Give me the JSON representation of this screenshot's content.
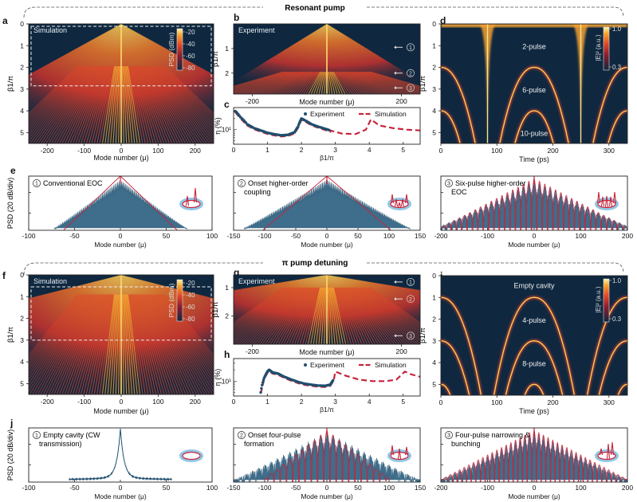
{
  "sections": {
    "top_title": "Resonant pump",
    "bottom_title": "π  pump detuning"
  },
  "colors": {
    "dark_bg": "#0f2840",
    "experiment": "#1f4f6e",
    "simulation": "#c8233a",
    "ring": "#6fb4dc"
  },
  "chart_data": [
    {
      "id": "a",
      "type": "heatmap",
      "panel_label": "a",
      "inner_label": "Simulation",
      "xlabel": "Mode number (μ)",
      "ylabel": "β1/π",
      "xlim": [
        -250,
        250
      ],
      "ylim": [
        0,
        5.5
      ],
      "xticks": [
        "-200",
        "-100",
        "0",
        "100",
        "200"
      ],
      "yticks": [
        "0",
        "1",
        "2",
        "3",
        "4",
        "5"
      ],
      "colorbar": {
        "label": "PSD (dBm)",
        "ticks": [
          "-20",
          "-40",
          "-60",
          "-80"
        ]
      },
      "highlight_box_beta": [
        0,
        2.85
      ]
    },
    {
      "id": "b",
      "type": "heatmap",
      "panel_label": "b",
      "inner_label": "Experiment",
      "xlabel": "Mode number (μ)",
      "ylabel": "β1/π",
      "xlim": [
        -250,
        250
      ],
      "ylim": [
        0,
        2.85
      ],
      "xticks": [
        "-200",
        "200"
      ],
      "yticks": [
        "1",
        "2"
      ],
      "markers": [
        {
          "label": "1",
          "beta": 0.95
        },
        {
          "label": "2",
          "beta": 2.0
        },
        {
          "label": "3",
          "beta": 2.6
        }
      ]
    },
    {
      "id": "c",
      "type": "scatter",
      "panel_label": "c",
      "xlabel": "β1/π",
      "ylabel": "η (%)",
      "xlim": [
        0,
        5.5
      ],
      "yscale": "log",
      "xticks": [
        "0",
        "1",
        "2",
        "3",
        "4",
        "5"
      ],
      "ytick_label": "10¹",
      "legend": [
        "Experiment",
        "Simulation"
      ],
      "series": [
        {
          "name": "Experiment",
          "x": [
            0.05,
            0.2,
            0.4,
            0.6,
            0.8,
            1.0,
            1.2,
            1.4,
            1.6,
            1.8,
            1.9,
            2.0,
            2.1,
            2.3,
            2.5,
            2.7,
            2.85
          ],
          "y": [
            32,
            22,
            14,
            11,
            9.5,
            8.2,
            7.5,
            7.0,
            7.2,
            8.5,
            12,
            20,
            18,
            14,
            12,
            10.5,
            9.5
          ]
        },
        {
          "name": "Simulation",
          "x": [
            2.85,
            3.2,
            3.6,
            3.9,
            4.05,
            4.3,
            4.7,
            5.1,
            5.5
          ],
          "y": [
            9.5,
            7.8,
            7.6,
            10,
            19,
            13,
            11,
            10,
            9.5
          ]
        }
      ]
    },
    {
      "id": "d",
      "type": "heatmap",
      "panel_label": "d",
      "xlabel": "Time (ps)",
      "ylabel": "β1/π",
      "xlim": [
        0,
        333
      ],
      "ylim": [
        0,
        5.5
      ],
      "xticks": [
        "0",
        "100",
        "200",
        "300"
      ],
      "yticks": [
        "0",
        "1",
        "2",
        "3",
        "4",
        "5"
      ],
      "colorbar": {
        "label": "|E|² (a.u.)",
        "ticks": [
          "1.0",
          "0.3"
        ]
      },
      "annotations": [
        "2-pulse",
        "6-pulse",
        "10-pulse"
      ],
      "arc_onsets_beta": [
        2,
        4
      ]
    },
    {
      "id": "e1",
      "type": "line",
      "panel_label": "e",
      "marker": "1",
      "title": "Conventional EOC",
      "xlabel": "Mode number (μ)",
      "ylabel": "PSD (20 dB/div)",
      "xlim": [
        -100,
        100
      ],
      "xticks": [
        "-100",
        "-50",
        "0",
        "50",
        "100"
      ],
      "comb_halfwidth": 72,
      "sim_halfwidth": 62
    },
    {
      "id": "e2",
      "type": "line",
      "marker": "2",
      "title": "Onset higher-order coupling",
      "xlabel": "Mode number (μ)",
      "xlim": [
        -150,
        150
      ],
      "xticks": [
        "-150",
        "-100",
        "-50",
        "0",
        "50",
        "100",
        "150"
      ],
      "comb_halfwidth": 133,
      "sim_halfwidth": 103
    },
    {
      "id": "e3",
      "type": "line",
      "marker": "3",
      "title": "Six-pulse higher-order EOC",
      "xlabel": "Mode number (μ)",
      "xlim": [
        -200,
        200
      ],
      "xticks": [
        "-200",
        "-100",
        "0",
        "100",
        "200"
      ],
      "comb_halfwidth": 210,
      "sim_halfwidth": 200
    },
    {
      "id": "f",
      "type": "heatmap",
      "panel_label": "f",
      "inner_label": "Simulation",
      "xlabel": "Mode number (μ)",
      "ylabel": "β1/π",
      "xlim": [
        -250,
        250
      ],
      "ylim": [
        0,
        5.5
      ],
      "xticks": [
        "-200",
        "-100",
        "0",
        "100",
        "200"
      ],
      "yticks": [
        "0",
        "1",
        "2",
        "3",
        "4",
        "5"
      ],
      "colorbar": {
        "label": "PSD (dBm)",
        "ticks": [
          "-20",
          "-40",
          "-60",
          "-80"
        ]
      },
      "highlight_box_beta": [
        0.55,
        3.0
      ]
    },
    {
      "id": "g",
      "type": "heatmap",
      "panel_label": "g",
      "inner_label": "Experiment",
      "xlabel": "Mode number (μ)",
      "ylabel": "β1/π",
      "xlim": [
        -250,
        250
      ],
      "ylim": [
        0.55,
        3.0
      ],
      "xticks": [
        "-200",
        "200"
      ],
      "yticks": [
        "1",
        "2"
      ],
      "markers": [
        {
          "label": "1",
          "beta": 0.8
        },
        {
          "label": "2",
          "beta": 1.4
        },
        {
          "label": "3",
          "beta": 2.7
        }
      ]
    },
    {
      "id": "h",
      "type": "scatter",
      "panel_label": "h",
      "xlabel": "β1/π",
      "ylabel": "η (%)",
      "xlim": [
        0,
        5.5
      ],
      "yscale": "log",
      "xticks": [
        "0",
        "1",
        "2",
        "3",
        "4",
        "5"
      ],
      "ytick_label": "10¹",
      "legend": [
        "Experiment",
        "Simulation"
      ],
      "series": [
        {
          "name": "Experiment",
          "x": [
            0.8,
            0.9,
            1.0,
            1.05,
            1.15,
            1.3,
            1.5,
            1.7,
            1.9,
            2.1,
            2.3,
            2.5,
            2.7,
            2.85,
            2.95
          ],
          "y": [
            5,
            12,
            18,
            20,
            17,
            16,
            13,
            11,
            9.5,
            8.5,
            8,
            7.6,
            7.5,
            8,
            11
          ]
        },
        {
          "name": "Simulation",
          "x": [
            3.0,
            3.3,
            3.7,
            4.1,
            4.5,
            4.8,
            5.05,
            5.25,
            5.5
          ],
          "y": [
            18,
            14,
            11,
            10,
            10,
            11,
            18,
            15,
            13
          ]
        }
      ]
    },
    {
      "id": "i",
      "type": "heatmap",
      "panel_label": "i",
      "xlabel": "Time (ps)",
      "ylabel": "β1/π",
      "xlim": [
        0,
        333
      ],
      "ylim": [
        0,
        5.5
      ],
      "xticks": [
        "0",
        "100",
        "200",
        "300"
      ],
      "yticks": [
        "0",
        "1",
        "2",
        "3",
        "4",
        "5"
      ],
      "colorbar": {
        "label": "|E|² (a.u.)",
        "ticks": [
          "1.0",
          "0.3"
        ]
      },
      "annotations": [
        "Empty cavity",
        "4-pulse",
        "8-pulse"
      ],
      "arc_onsets_beta": [
        1,
        3,
        5
      ]
    },
    {
      "id": "j1",
      "type": "line",
      "panel_label": "j",
      "marker": "1",
      "title": "Empty cavity (CW transmission)",
      "xlabel": "Mode number (μ)",
      "ylabel": "PSD (20 dB/div)",
      "xlim": [
        -100,
        100
      ],
      "xticks": [
        "-100",
        "-50",
        "0",
        "50",
        "100"
      ],
      "comb_halfwidth": 56
    },
    {
      "id": "j2",
      "type": "line",
      "marker": "2",
      "title": "Onset four-pulse formation",
      "xlabel": "Mode number (μ)",
      "xlim": [
        -150,
        150
      ],
      "xticks": [
        "-150",
        "-100",
        "-50",
        "0",
        "50",
        "100",
        "150"
      ],
      "comb_halfwidth": 150,
      "sim_halfwidth": 102
    },
    {
      "id": "j3",
      "type": "line",
      "marker": "3",
      "title": "Four-pulse narrowing & bunching",
      "xlabel": "Mode number (μ)",
      "xlim": [
        -200,
        200
      ],
      "xticks": [
        "-200",
        "-100",
        "0",
        "100",
        "200"
      ],
      "comb_halfwidth": 200,
      "sim_halfwidth": 200
    }
  ]
}
